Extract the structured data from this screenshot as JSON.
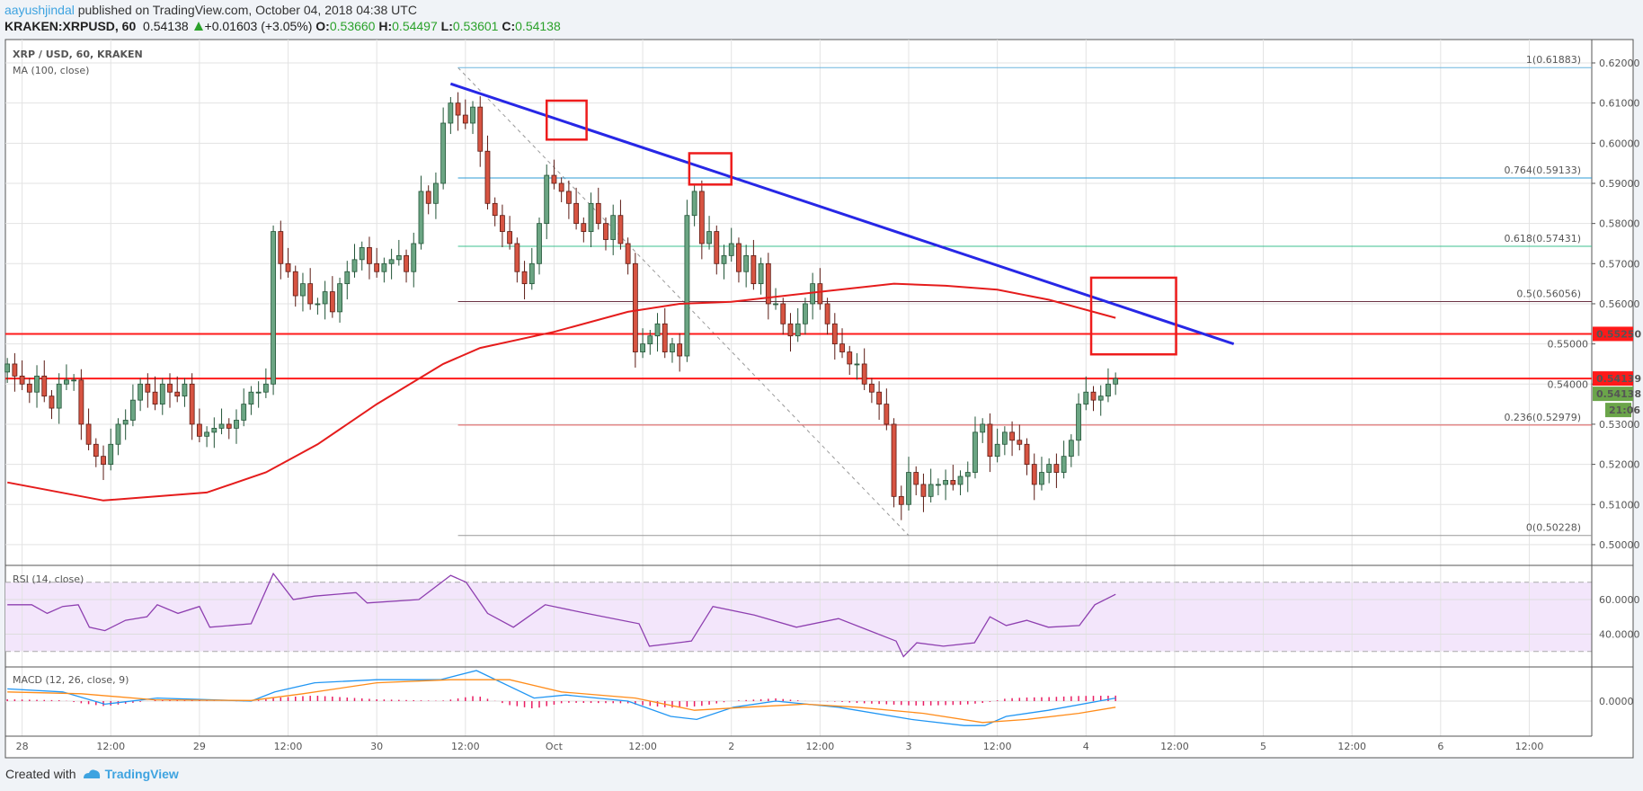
{
  "header": {
    "author": "aayushjindal",
    "published": "published on TradingView.com, October 04, 2018 04:38 UTC",
    "symbol": "KRAKEN:XRPUSD, 60",
    "last": "0.54138",
    "change": "+0.01603 (+3.05%)",
    "o_label": "O:",
    "o": "0.53660",
    "h_label": "H:",
    "h": "0.54497",
    "l_label": "L:",
    "l": "0.53601",
    "c_label": "C:",
    "c": "0.54138"
  },
  "footer": {
    "created_with": "Created with",
    "brand": "TradingView"
  },
  "colors": {
    "up": "#6ba583",
    "up_border": "#225437",
    "down": "#d75442",
    "down_border": "#5b1a13",
    "ma": "#e51c1c",
    "trend": "#2727e6",
    "rsi": "#8e3fb0",
    "rsi_band": "#f3e6fb",
    "macd": "#2196f3",
    "signal": "#ff8c1a",
    "hist": "#e91e63"
  },
  "chart_data": {
    "type": "candlestick",
    "title": "XRP / USD, 60, KRAKEN",
    "ma_label": "MA (100, close)",
    "rsi_label": "RSI (14, close)",
    "macd_label": "MACD (12, 26, close, 9)",
    "x_unit": "hours since Sep 27 22:00",
    "x_tick_labels": [
      "28",
      "12:00",
      "29",
      "12:00",
      "30",
      "12:00",
      "Oct",
      "12:00",
      "2",
      "12:00",
      "3",
      "12:00",
      "4",
      "12:00",
      "5",
      "12:00",
      "6",
      "12:00"
    ],
    "price_ticks": [
      "0.50000",
      "0.51000",
      "0.52000",
      "0.53000",
      "0.54000",
      "0.55000",
      "0.56000",
      "0.57000",
      "0.58000",
      "0.59000",
      "0.60000",
      "0.61000",
      "0.62000"
    ],
    "ylim": [
      0.4955,
      0.6245
    ],
    "first_open": 0.543,
    "closes": [
      0.545,
      0.542,
      0.54,
      0.538,
      0.542,
      0.537,
      0.534,
      0.54,
      0.541,
      0.541,
      0.53,
      0.525,
      0.522,
      0.52,
      0.525,
      0.53,
      0.531,
      0.536,
      0.54,
      0.538,
      0.535,
      0.54,
      0.538,
      0.537,
      0.54,
      0.53,
      0.527,
      0.528,
      0.529,
      0.53,
      0.529,
      0.531,
      0.535,
      0.538,
      0.538,
      0.54,
      0.578,
      0.57,
      0.568,
      0.562,
      0.565,
      0.56,
      0.56,
      0.563,
      0.558,
      0.565,
      0.568,
      0.571,
      0.574,
      0.57,
      0.568,
      0.57,
      0.571,
      0.572,
      0.568,
      0.575,
      0.588,
      0.585,
      0.59,
      0.605,
      0.61,
      0.607,
      0.605,
      0.609,
      0.598,
      0.585,
      0.582,
      0.578,
      0.575,
      0.568,
      0.565,
      0.57,
      0.58,
      0.592,
      0.59,
      0.588,
      0.585,
      0.58,
      0.578,
      0.585,
      0.58,
      0.576,
      0.582,
      0.575,
      0.57,
      0.548,
      0.55,
      0.552,
      0.555,
      0.548,
      0.55,
      0.547,
      0.582,
      0.588,
      0.575,
      0.578,
      0.57,
      0.572,
      0.575,
      0.568,
      0.572,
      0.565,
      0.57,
      0.56,
      0.56,
      0.555,
      0.552,
      0.555,
      0.56,
      0.565,
      0.56,
      0.555,
      0.55,
      0.548,
      0.545,
      0.545,
      0.54,
      0.538,
      0.535,
      0.53,
      0.512,
      0.51,
      0.518,
      0.515,
      0.512,
      0.515,
      0.515,
      0.516,
      0.515,
      0.517,
      0.518,
      0.528,
      0.53,
      0.522,
      0.525,
      0.528,
      0.526,
      0.525,
      0.52,
      0.515,
      0.518,
      0.52,
      0.518,
      0.522,
      0.526,
      0.535,
      0.538,
      0.536,
      0.537,
      0.54,
      0.54138
    ],
    "ma100": [
      [
        0,
        0.5155
      ],
      [
        13,
        0.511
      ],
      [
        27,
        0.513
      ],
      [
        35,
        0.518
      ],
      [
        42,
        0.525
      ],
      [
        50,
        0.535
      ],
      [
        59,
        0.545
      ],
      [
        64,
        0.549
      ],
      [
        74,
        0.553
      ],
      [
        84,
        0.558
      ],
      [
        91,
        0.56
      ],
      [
        98,
        0.5605
      ],
      [
        110,
        0.563
      ],
      [
        120,
        0.565
      ],
      [
        127,
        0.5645
      ],
      [
        134,
        0.5635
      ],
      [
        141,
        0.561
      ],
      [
        150,
        0.5565
      ]
    ],
    "trendline": [
      [
        60,
        0.6148
      ],
      [
        166,
        0.55
      ]
    ],
    "horizontal_lines": [
      {
        "price": 0.5525,
        "label": "0.55250"
      },
      {
        "price": 0.54139,
        "label": "0.54139"
      }
    ],
    "last_price_label": "0.54138",
    "countdown": "21:06",
    "fib": {
      "from": [
        61,
        0.61883
      ],
      "to": [
        122,
        0.50228
      ],
      "levels": [
        {
          "label": "1(0.61883)",
          "price": 0.61883,
          "color": "#6fb6de"
        },
        {
          "label": "0.764(0.59133)",
          "price": 0.59133,
          "color": "#2e9bd6"
        },
        {
          "label": "0.618(0.57431)",
          "price": 0.57431,
          "color": "#3cc08f"
        },
        {
          "label": "0.5(0.56056)",
          "price": 0.56056,
          "color": "#6b3344"
        },
        {
          "label": "0.236(0.52979)",
          "price": 0.52979,
          "color": "#e05a5a"
        },
        {
          "label": "0(0.50228)",
          "price": 0.50228,
          "color": "#999999"
        }
      ]
    },
    "boxes": [
      {
        "h": [
          73,
          78.4
        ],
        "p": [
          0.6106,
          0.6009
        ]
      },
      {
        "h": [
          92.3,
          98
        ],
        "p": [
          0.5975,
          0.5897
        ]
      },
      {
        "h": [
          146.7,
          158.2
        ],
        "p": [
          0.5665,
          0.5474
        ]
      }
    ],
    "rsi": {
      "ticks": [
        "60.0000",
        "40.0000"
      ],
      "band": [
        30,
        70
      ],
      "points": [
        [
          0,
          57
        ],
        [
          3.3,
          57
        ],
        [
          5.4,
          52
        ],
        [
          7.5,
          56
        ],
        [
          9.6,
          57
        ],
        [
          11.1,
          44
        ],
        [
          13.2,
          42
        ],
        [
          16,
          48
        ],
        [
          18.9,
          50
        ],
        [
          20.3,
          57
        ],
        [
          23.1,
          52
        ],
        [
          26,
          56
        ],
        [
          27.4,
          44
        ],
        [
          33,
          46
        ],
        [
          36,
          75
        ],
        [
          38.7,
          60
        ],
        [
          41.6,
          62
        ],
        [
          47.2,
          64
        ],
        [
          48.7,
          58
        ],
        [
          55.7,
          60
        ],
        [
          60,
          74
        ],
        [
          62.1,
          70
        ],
        [
          65,
          52
        ],
        [
          68.5,
          44
        ],
        [
          72.8,
          57
        ],
        [
          78.4,
          52
        ],
        [
          85.5,
          46
        ],
        [
          86.9,
          33
        ],
        [
          92.6,
          36
        ],
        [
          95.5,
          56
        ],
        [
          101.1,
          51
        ],
        [
          106.8,
          44
        ],
        [
          112.5,
          49
        ],
        [
          116.7,
          42
        ],
        [
          120.3,
          36
        ],
        [
          121.3,
          27
        ],
        [
          123.1,
          35
        ],
        [
          126.7,
          33
        ],
        [
          130.9,
          35
        ],
        [
          133,
          50
        ],
        [
          135.2,
          45
        ],
        [
          138,
          48
        ],
        [
          140.9,
          44
        ],
        [
          145.1,
          45
        ],
        [
          147.2,
          57
        ],
        [
          150,
          63
        ]
      ]
    },
    "macd": {
      "ticks": [
        "0.0000"
      ],
      "macd": [
        [
          0,
          0.002
        ],
        [
          7.5,
          0.0015
        ],
        [
          13.2,
          -0.0005
        ],
        [
          20.3,
          0.0005
        ],
        [
          33,
          0
        ],
        [
          36.2,
          0.0015
        ],
        [
          41.6,
          0.003
        ],
        [
          50,
          0.0035
        ],
        [
          58.6,
          0.0035
        ],
        [
          63.5,
          0.005
        ],
        [
          71.3,
          0.0005
        ],
        [
          75.6,
          0.001
        ],
        [
          84,
          0
        ],
        [
          89.8,
          -0.0025
        ],
        [
          93.3,
          -0.003
        ],
        [
          98.3,
          -0.001
        ],
        [
          104,
          0
        ],
        [
          112.5,
          -0.001
        ],
        [
          122.4,
          -0.003
        ],
        [
          129.5,
          -0.004
        ],
        [
          132.3,
          -0.004
        ],
        [
          135.2,
          -0.0025
        ],
        [
          140.9,
          -0.0015
        ],
        [
          150,
          0.0005
        ]
      ],
      "signal": [
        [
          0,
          0.0015
        ],
        [
          10,
          0.0012
        ],
        [
          20,
          0.0002
        ],
        [
          33,
          0.0001
        ],
        [
          40,
          0.0012
        ],
        [
          50,
          0.003
        ],
        [
          60,
          0.0035
        ],
        [
          68,
          0.0035
        ],
        [
          75,
          0.0015
        ],
        [
          85,
          0.0005
        ],
        [
          93,
          -0.0015
        ],
        [
          100,
          -0.001
        ],
        [
          108,
          -0.0005
        ],
        [
          115,
          -0.001
        ],
        [
          124,
          -0.002
        ],
        [
          132,
          -0.0035
        ],
        [
          138,
          -0.003
        ],
        [
          145,
          -0.002
        ],
        [
          150,
          -0.001
        ]
      ]
    }
  }
}
